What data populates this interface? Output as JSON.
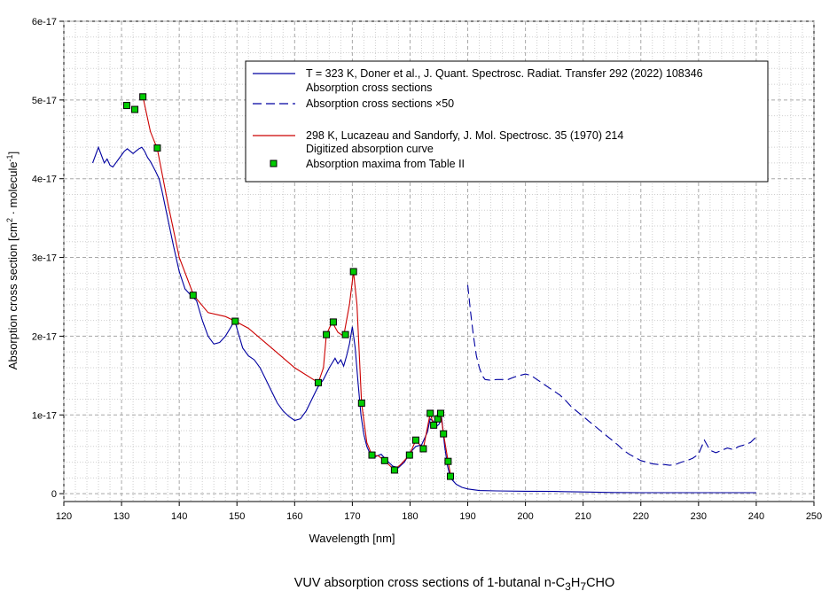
{
  "caption": {
    "prefix": "VUV absorption cross sections of 1-butanal n-C",
    "sub1": "3",
    "mid": "H",
    "sub2": "7",
    "suffix": "CHO"
  },
  "chart_data": {
    "type": "line",
    "xlabel": "Wavelength [nm]",
    "ylabel_parts": [
      "Absorption cross section [cm",
      "2",
      " · molecule",
      "-1",
      "]"
    ],
    "xlim": [
      120,
      250
    ],
    "ylim": [
      -1e-18,
      6e-17
    ],
    "x_ticks": [
      120,
      130,
      140,
      150,
      160,
      170,
      180,
      190,
      200,
      210,
      220,
      230,
      240,
      250
    ],
    "y_ticks": [
      0,
      1e-17,
      2e-17,
      3e-17,
      4e-17,
      5e-17,
      6e-17
    ],
    "y_tick_labels": [
      "0",
      "1e-17",
      "2e-17",
      "3e-17",
      "4e-17",
      "5e-17",
      "6e-17"
    ],
    "grid": true,
    "legend_position": "top-right",
    "legend": [
      {
        "label": "T = 323 K, Doner et al., J. Quant. Spectrosc. Radiat. Transfer 292 (2022) 108346",
        "style": "none"
      },
      {
        "label": "Absorption cross sections",
        "style": "solid",
        "color": "#0000a0"
      },
      {
        "label": "Absorption cross sections ×50",
        "style": "dashed",
        "color": "#0000a0"
      },
      {
        "label": "298 K, Lucazeau and Sandorfy, J. Mol. Spectrosc. 35 (1970) 214",
        "style": "none"
      },
      {
        "label": "Digitized absorption curve",
        "style": "solid",
        "color": "#cc0000"
      },
      {
        "label": "Absorption maxima from Table II",
        "style": "marker",
        "color": "#00cc00"
      }
    ],
    "series": [
      {
        "name": "Absorption cross sections",
        "color": "#0000a0",
        "style": "solid",
        "points": [
          [
            125,
            4.2e-17
          ],
          [
            125.5,
            4.3e-17
          ],
          [
            126,
            4.4e-17
          ],
          [
            126.5,
            4.3e-17
          ],
          [
            127,
            4.2e-17
          ],
          [
            127.5,
            4.25e-17
          ],
          [
            128,
            4.17e-17
          ],
          [
            128.5,
            4.15e-17
          ],
          [
            129,
            4.2e-17
          ],
          [
            129.5,
            4.25e-17
          ],
          [
            130,
            4.3e-17
          ],
          [
            130.5,
            4.35e-17
          ],
          [
            131,
            4.38e-17
          ],
          [
            131.5,
            4.35e-17
          ],
          [
            132,
            4.32e-17
          ],
          [
            132.5,
            4.35e-17
          ],
          [
            133,
            4.38e-17
          ],
          [
            133.5,
            4.4e-17
          ],
          [
            134,
            4.35e-17
          ],
          [
            134.5,
            4.27e-17
          ],
          [
            135,
            4.22e-17
          ],
          [
            135.5,
            4.15e-17
          ],
          [
            136,
            4.08e-17
          ],
          [
            136.5,
            4e-17
          ],
          [
            137,
            3.85e-17
          ],
          [
            138,
            3.5e-17
          ],
          [
            139,
            3.15e-17
          ],
          [
            140,
            2.82e-17
          ],
          [
            141,
            2.6e-17
          ],
          [
            142,
            2.52e-17
          ],
          [
            143,
            2.45e-17
          ],
          [
            144,
            2.2e-17
          ],
          [
            145,
            2e-17
          ],
          [
            146,
            1.9e-17
          ],
          [
            147,
            1.92e-17
          ],
          [
            148,
            2e-17
          ],
          [
            149,
            2.12e-17
          ],
          [
            149.6,
            2.2e-17
          ],
          [
            150,
            2.1e-17
          ],
          [
            151,
            1.85e-17
          ],
          [
            152,
            1.75e-17
          ],
          [
            153,
            1.7e-17
          ],
          [
            154,
            1.6e-17
          ],
          [
            155,
            1.45e-17
          ],
          [
            156,
            1.3e-17
          ],
          [
            157,
            1.15e-17
          ],
          [
            158,
            1.05e-17
          ],
          [
            159,
            9.8e-18
          ],
          [
            160,
            9.3e-18
          ],
          [
            161,
            9.5e-18
          ],
          [
            162,
            1.05e-17
          ],
          [
            163,
            1.2e-17
          ],
          [
            164,
            1.35e-17
          ],
          [
            165,
            1.45e-17
          ],
          [
            166,
            1.6e-17
          ],
          [
            167,
            1.72e-17
          ],
          [
            167.5,
            1.65e-17
          ],
          [
            168,
            1.7e-17
          ],
          [
            168.5,
            1.62e-17
          ],
          [
            169,
            1.75e-17
          ],
          [
            169.5,
            1.9e-17
          ],
          [
            170,
            2.12e-17
          ],
          [
            170.5,
            1.85e-17
          ],
          [
            171,
            1.4e-17
          ],
          [
            171.5,
            1e-17
          ],
          [
            172,
            7.5e-18
          ],
          [
            172.5,
            6e-18
          ],
          [
            173,
            5.2e-18
          ],
          [
            174,
            4.7e-18
          ],
          [
            175,
            5e-18
          ],
          [
            176,
            4.2e-18
          ],
          [
            177,
            3.5e-18
          ],
          [
            178,
            3.3e-18
          ],
          [
            179,
            4e-18
          ],
          [
            180,
            5.2e-18
          ],
          [
            181,
            6e-18
          ],
          [
            182,
            6.2e-18
          ],
          [
            183,
            7.8e-18
          ],
          [
            183.5,
            9.5e-18
          ],
          [
            184,
            9.2e-18
          ],
          [
            184.5,
            8.5e-18
          ],
          [
            185,
            8.8e-18
          ],
          [
            185.5,
            9.5e-18
          ],
          [
            186,
            6e-18
          ],
          [
            186.5,
            3.5e-18
          ],
          [
            187,
            2e-18
          ],
          [
            188,
            1.2e-18
          ],
          [
            189,
            8e-19
          ],
          [
            190,
            6e-19
          ],
          [
            192,
            4e-19
          ],
          [
            195,
            3.5e-19
          ],
          [
            200,
            3e-19
          ],
          [
            205,
            2.8e-19
          ],
          [
            210,
            2.2e-19
          ],
          [
            215,
            1.5e-19
          ],
          [
            220,
            1.2e-19
          ],
          [
            225,
            1.2e-19
          ],
          [
            230,
            1.2e-19
          ],
          [
            235,
            1.2e-19
          ],
          [
            240,
            1.2e-19
          ]
        ]
      },
      {
        "name": "Absorption cross sections ×50",
        "color": "#0000a0",
        "style": "dashed",
        "points": [
          [
            190,
            2.65e-17
          ],
          [
            190.5,
            2.3e-17
          ],
          [
            191,
            2e-17
          ],
          [
            191.5,
            1.75e-17
          ],
          [
            192,
            1.6e-17
          ],
          [
            192.5,
            1.5e-17
          ],
          [
            193,
            1.45e-17
          ],
          [
            194,
            1.44e-17
          ],
          [
            195,
            1.45e-17
          ],
          [
            196,
            1.45e-17
          ],
          [
            197,
            1.45e-17
          ],
          [
            198,
            1.48e-17
          ],
          [
            199,
            1.5e-17
          ],
          [
            200,
            1.52e-17
          ],
          [
            201,
            1.5e-17
          ],
          [
            202,
            1.45e-17
          ],
          [
            203,
            1.4e-17
          ],
          [
            204,
            1.35e-17
          ],
          [
            205,
            1.3e-17
          ],
          [
            206,
            1.25e-17
          ],
          [
            207,
            1.18e-17
          ],
          [
            208,
            1.1e-17
          ],
          [
            209,
            1.04e-17
          ],
          [
            210,
            9.8e-18
          ],
          [
            211,
            9.2e-18
          ],
          [
            212,
            8.6e-18
          ],
          [
            213,
            8e-18
          ],
          [
            214,
            7.4e-18
          ],
          [
            215,
            6.8e-18
          ],
          [
            216,
            6.2e-18
          ],
          [
            217,
            5.5e-18
          ],
          [
            218,
            5e-18
          ],
          [
            219,
            4.6e-18
          ],
          [
            220,
            4.2e-18
          ],
          [
            221,
            4e-18
          ],
          [
            222,
            3.8e-18
          ],
          [
            223,
            3.7e-18
          ],
          [
            224,
            3.7e-18
          ],
          [
            225,
            3.6e-18
          ],
          [
            226,
            3.7e-18
          ],
          [
            227,
            4e-18
          ],
          [
            228,
            4.2e-18
          ],
          [
            229,
            4.5e-18
          ],
          [
            230,
            5e-18
          ],
          [
            231,
            6.8e-18
          ],
          [
            232,
            5.5e-18
          ],
          [
            233,
            5.2e-18
          ],
          [
            234,
            5.5e-18
          ],
          [
            235,
            5.8e-18
          ],
          [
            236,
            5.6e-18
          ],
          [
            237,
            6e-18
          ],
          [
            238,
            6.2e-18
          ],
          [
            239,
            6.5e-18
          ],
          [
            240,
            7.2e-18
          ]
        ]
      },
      {
        "name": "Digitized absorption curve",
        "color": "#cc0000",
        "style": "solid",
        "points": [
          [
            133.7,
            5.04e-17
          ],
          [
            135,
            4.6e-17
          ],
          [
            136.2,
            4.38e-17
          ],
          [
            138,
            3.7e-17
          ],
          [
            140,
            3e-17
          ],
          [
            142.5,
            2.52e-17
          ],
          [
            145,
            2.3e-17
          ],
          [
            148,
            2.25e-17
          ],
          [
            149.7,
            2.19e-17
          ],
          [
            152,
            2.1e-17
          ],
          [
            156,
            1.85e-17
          ],
          [
            160,
            1.6e-17
          ],
          [
            164.1,
            1.41e-17
          ],
          [
            165,
            1.6e-17
          ],
          [
            165.5,
            2.02e-17
          ],
          [
            166.5,
            2.18e-17
          ],
          [
            167.5,
            2.05e-17
          ],
          [
            168.5,
            2e-17
          ],
          [
            169.5,
            2.4e-17
          ],
          [
            170.2,
            2.82e-17
          ],
          [
            170.8,
            2.4e-17
          ],
          [
            171.6,
            1.15e-17
          ],
          [
            172.5,
            6.5e-18
          ],
          [
            173.4,
            4.9e-18
          ],
          [
            174.5,
            4.8e-18
          ],
          [
            175.6,
            4.2e-18
          ],
          [
            177.3,
            3e-18
          ],
          [
            178.5,
            3.8e-18
          ],
          [
            179.9,
            4.9e-18
          ],
          [
            181,
            6.8e-18
          ],
          [
            182.3,
            5.7e-18
          ],
          [
            183.5,
            1.02e-17
          ],
          [
            184.1,
            8.7e-18
          ],
          [
            184.8,
            9.5e-18
          ],
          [
            185.3,
            1.02e-17
          ],
          [
            185.8,
            7.6e-18
          ],
          [
            186.6,
            4.1e-18
          ],
          [
            187,
            2.5e-18
          ]
        ]
      },
      {
        "name": "Absorption maxima from Table II",
        "color": "#00cc00",
        "style": "marker",
        "points": [
          [
            130.9,
            4.93e-17
          ],
          [
            132.3,
            4.88e-17
          ],
          [
            133.7,
            5.04e-17
          ],
          [
            136.2,
            4.39e-17
          ],
          [
            142.4,
            2.52e-17
          ],
          [
            149.7,
            2.19e-17
          ],
          [
            164.1,
            1.41e-17
          ],
          [
            165.5,
            2.02e-17
          ],
          [
            166.7,
            2.18e-17
          ],
          [
            168.8,
            2.02e-17
          ],
          [
            170.2,
            2.82e-17
          ],
          [
            171.6,
            1.15e-17
          ],
          [
            173.4,
            4.9e-18
          ],
          [
            175.6,
            4.2e-18
          ],
          [
            177.3,
            3e-18
          ],
          [
            179.9,
            4.9e-18
          ],
          [
            181.0,
            6.8e-18
          ],
          [
            182.3,
            5.7e-18
          ],
          [
            183.5,
            1.02e-17
          ],
          [
            184.1,
            8.7e-18
          ],
          [
            184.8,
            9.5e-18
          ],
          [
            185.3,
            1.02e-17
          ],
          [
            185.8,
            7.6e-18
          ],
          [
            186.6,
            4.1e-18
          ],
          [
            187.0,
            2.2e-18
          ]
        ]
      }
    ]
  }
}
